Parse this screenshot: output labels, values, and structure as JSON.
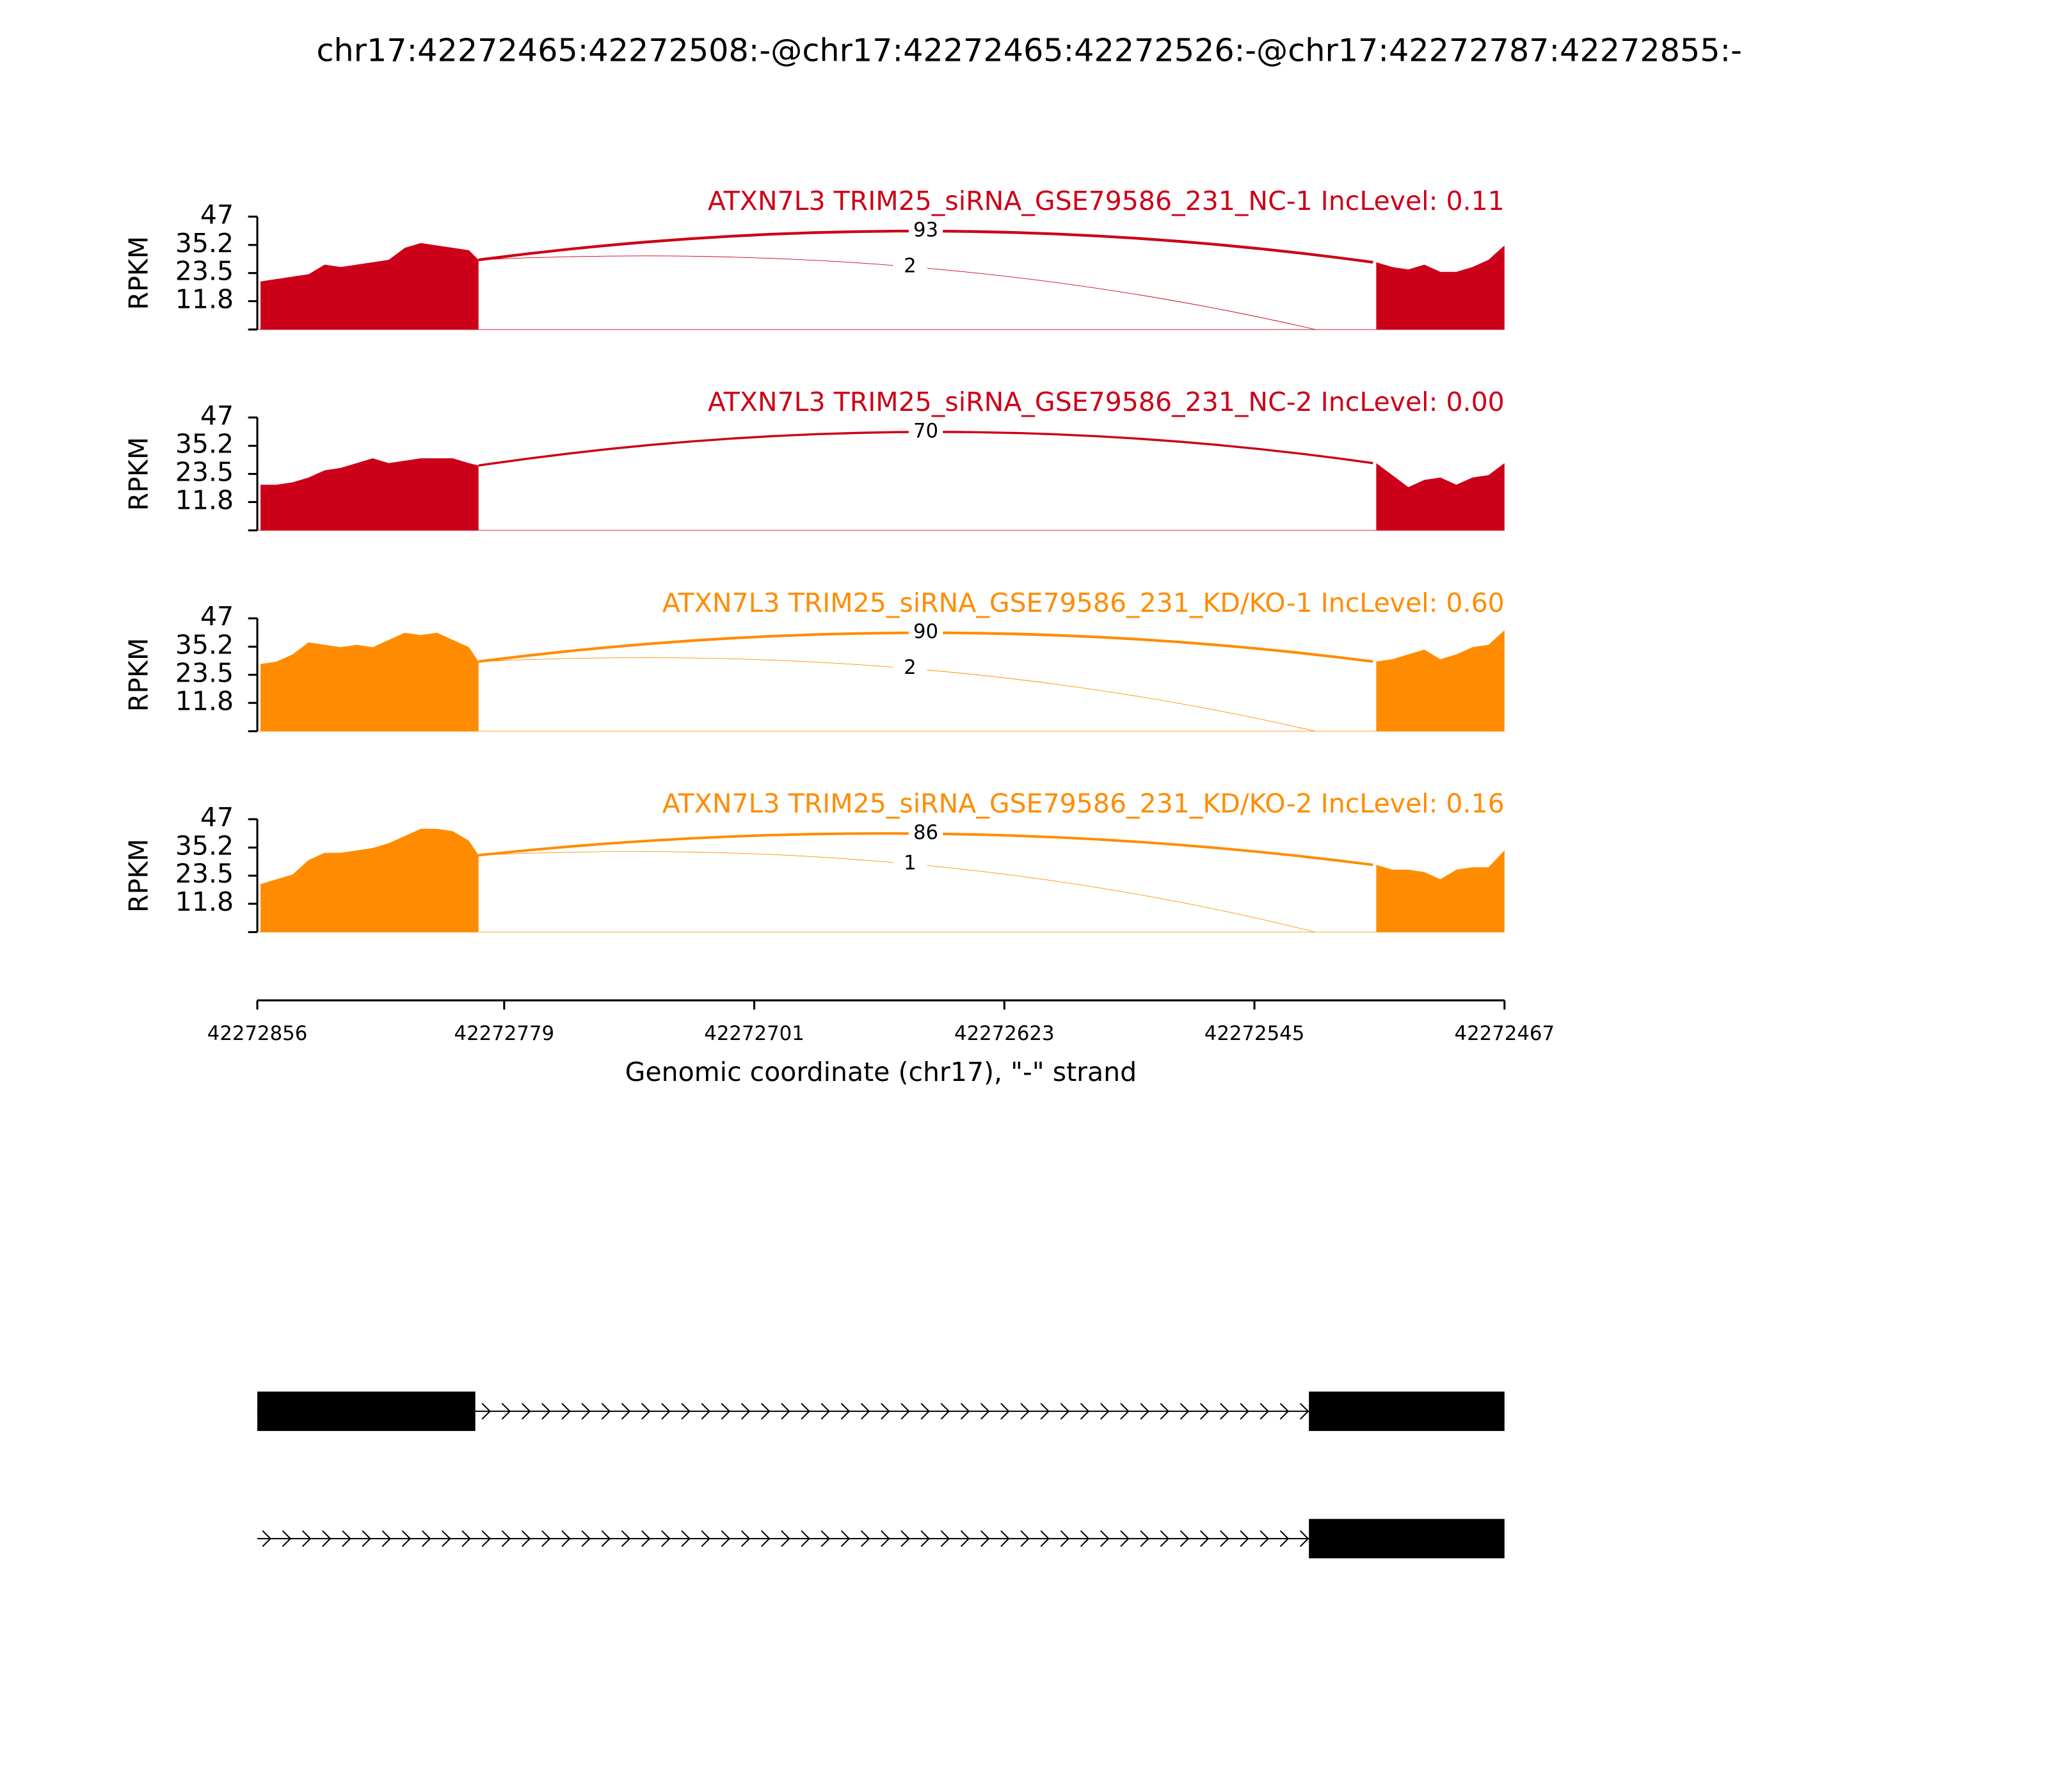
{
  "chart_data": {
    "type": "sashimi",
    "title": "chr17:42272465:42272508:-@chr17:42272465:42272526:-@chr17:42272787:42272855:-",
    "xlabel": "Genomic coordinate (chr17), \"-\" strand",
    "ylabel": "RPKM",
    "xlim": [
      42272856,
      42272467
    ],
    "xticks": [
      42272856,
      42272779,
      42272701,
      42272623,
      42272545,
      42272467
    ],
    "ylim": [
      0,
      47
    ],
    "yticks": [
      11.8,
      23.5,
      35.2,
      47
    ],
    "x": [
      42272855,
      42272850,
      42272845,
      42272840,
      42272835,
      42272830,
      42272825,
      42272820,
      42272815,
      42272810,
      42272805,
      42272800,
      42272795,
      42272790,
      42272787,
      null,
      42272507,
      42272502,
      42272497,
      42272492,
      42272487,
      42272482,
      42272477,
      42272472,
      42272467
    ],
    "series": [
      {
        "name": "ATXN7L3 TRIM25_siRNA_GSE79586_231_NC-1 IncLevel: 0.11",
        "color": "#cc0018",
        "values": [
          20,
          21,
          22,
          23,
          27,
          26,
          27,
          28,
          29,
          34,
          36,
          35,
          34,
          33,
          29,
          null,
          28,
          26,
          25,
          27,
          24,
          24,
          26,
          29,
          35
        ],
        "junctions": [
          {
            "start": 42272787,
            "end": 42272508,
            "count": 93
          },
          {
            "start": 42272787,
            "end": 42272526,
            "count": 2
          }
        ]
      },
      {
        "name": "ATXN7L3 TRIM25_siRNA_GSE79586_231_NC-2 IncLevel: 0.00",
        "color": "#cc0018",
        "values": [
          19,
          19,
          20,
          22,
          25,
          26,
          28,
          30,
          28,
          29,
          30,
          30,
          30,
          28,
          27,
          null,
          28,
          23,
          18,
          21,
          22,
          19,
          22,
          23,
          28
        ],
        "junctions": [
          {
            "start": 42272787,
            "end": 42272508,
            "count": 70
          }
        ]
      },
      {
        "name": "ATXN7L3 TRIM25_siRNA_GSE79586_231_KD/KO-1 IncLevel: 0.60",
        "color": "#ff8c00",
        "values": [
          28,
          29,
          32,
          37,
          36,
          35,
          36,
          35,
          38,
          41,
          40,
          41,
          38,
          35,
          29,
          null,
          29,
          30,
          32,
          34,
          30,
          32,
          35,
          36,
          42
        ],
        "junctions": [
          {
            "start": 42272787,
            "end": 42272508,
            "count": 90
          },
          {
            "start": 42272787,
            "end": 42272526,
            "count": 2
          }
        ]
      },
      {
        "name": "ATXN7L3 TRIM25_siRNA_GSE79586_231_KD/KO-2 IncLevel: 0.16",
        "color": "#ff8c00",
        "values": [
          20,
          22,
          24,
          30,
          33,
          33,
          34,
          35,
          37,
          40,
          43,
          43,
          42,
          38,
          32,
          null,
          28,
          26,
          26,
          25,
          22,
          26,
          27,
          27,
          34
        ],
        "junctions": [
          {
            "start": 42272787,
            "end": 42272508,
            "count": 86
          },
          {
            "start": 42272787,
            "end": 42272526,
            "count": 1
          }
        ]
      }
    ],
    "gene_models": [
      {
        "start": 42272856,
        "end": 42272467,
        "exons": [
          [
            42272856,
            42272788
          ],
          [
            42272528,
            42272467
          ]
        ]
      },
      {
        "start": 42272856,
        "end": 42272467,
        "exons": [
          [
            42272528,
            42272467
          ]
        ]
      }
    ]
  }
}
